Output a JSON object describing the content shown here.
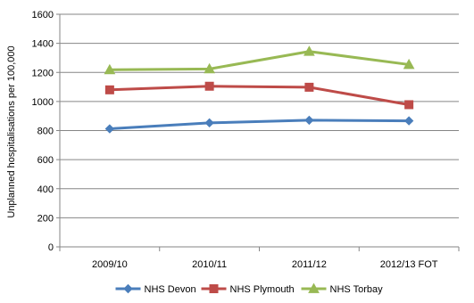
{
  "chart_data": {
    "type": "line",
    "title": "",
    "xlabel": "",
    "ylabel": "Unplanned hospitalisations per 100,000",
    "categories": [
      "2009/10",
      "2010/11",
      "2011/12",
      "2012/13 FOT"
    ],
    "ylim": [
      0,
      1600
    ],
    "yticks": [
      0,
      200,
      400,
      600,
      800,
      1000,
      1200,
      1400,
      1600
    ],
    "grid": "horizontal",
    "legend_position": "bottom",
    "series": [
      {
        "name": "NHS Devon",
        "values": [
          812,
          853,
          871,
          867
        ],
        "color": "#4a7ebb",
        "marker": "diamond"
      },
      {
        "name": "NHS Plymouth",
        "values": [
          1080,
          1105,
          1098,
          978
        ],
        "color": "#be4b48",
        "marker": "square"
      },
      {
        "name": "NHS Torbay",
        "values": [
          1218,
          1224,
          1344,
          1254
        ],
        "color": "#98b954",
        "marker": "triangle"
      }
    ]
  }
}
